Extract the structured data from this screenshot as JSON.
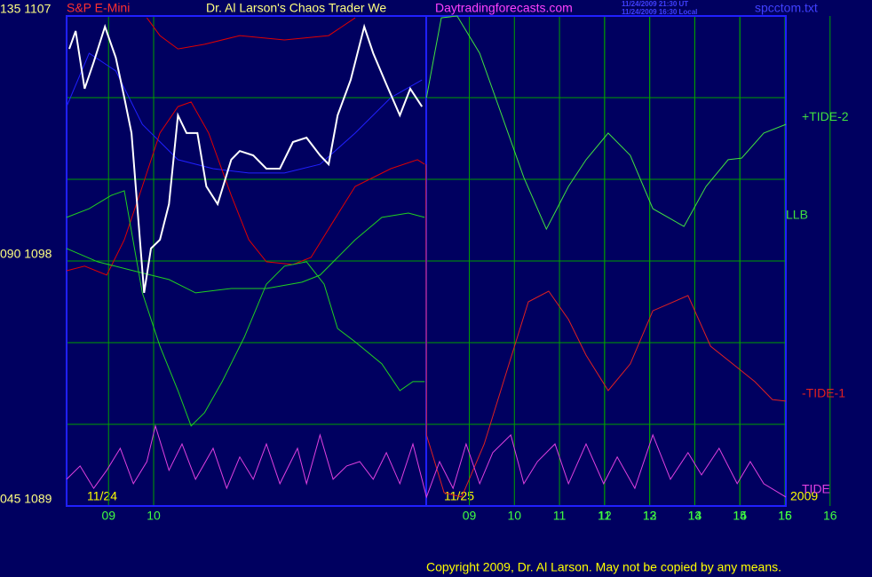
{
  "chart_data": {
    "type": "line",
    "instrument": "S&P E-Mini",
    "title": "Dr. Al Larson's Chaos Trader We",
    "website": "Daytradingforecasts.com",
    "timestamps": [
      "11/24/2009 21:30 UT",
      "11/24/2009 16:30 Local"
    ],
    "filename": "spcctom.txt",
    "copyright": "Copyright 2009, Dr. Al Larson. May not be copied by any means.",
    "date_labels": [
      "11/24",
      "11/25",
      "2009"
    ],
    "annotations": [
      "LLB"
    ],
    "xlim": [
      -0.93,
      15.02
    ],
    "xticks": [
      {
        "value": 0,
        "label": "09"
      },
      {
        "value": 1,
        "label": "10"
      },
      11,
      12,
      13,
      14,
      15,
      16,
      {
        "value": 8,
        "label": "09"
      },
      {
        "value": 9,
        "label": "10"
      },
      {
        "value": 10,
        "label": "11"
      },
      {
        "value": 11,
        "label": "12"
      },
      {
        "value": 12,
        "label": "13"
      },
      {
        "value": 13,
        "label": "14"
      },
      {
        "value": 14,
        "label": "15"
      },
      {
        "value": 15,
        "label": "16"
      }
    ],
    "ylim": [
      1089,
      1107
    ],
    "yticks": [
      {
        "value": 1107,
        "label": "135 1107"
      },
      {
        "value": 1098,
        "label": "090 1098"
      },
      {
        "value": 1089,
        "label": "045 1089"
      }
    ],
    "ygrid": [
      1107,
      1104,
      1101,
      1098,
      1095,
      1092,
      1089
    ],
    "grid": true,
    "series": [
      {
        "color": "#2020ff",
        "x": [
          -0.93,
          -0.43,
          0.16,
          0.75,
          1.54,
          2.32,
          3.11,
          3.9,
          4.69,
          5.47,
          6.26,
          6.95
        ],
        "values": [
          1103.67,
          1105.63,
          1104.98,
          1103.02,
          1101.72,
          1101.39,
          1101.23,
          1101.23,
          1101.55,
          1102.7,
          1104.0,
          1104.65
        ]
      },
      {
        "color": "#e00000",
        "x": [
          0.85,
          1.14,
          1.54,
          2.13,
          2.91,
          3.9,
          4.88,
          5.47
        ],
        "values": [
          1106.93,
          1106.28,
          1105.79,
          1105.96,
          1106.28,
          1106.12,
          1106.28,
          1106.93
        ]
      },
      {
        "color": "#e00000",
        "x": [
          -0.93,
          -0.53,
          -0.04,
          0.35,
          0.75,
          1.14,
          1.54,
          1.83,
          2.22,
          2.72,
          3.11,
          3.5,
          4.09,
          4.49,
          4.98,
          5.47,
          6.26,
          6.85,
          7.01
        ],
        "values": [
          1097.64,
          1097.81,
          1097.48,
          1098.78,
          1100.74,
          1102.7,
          1103.67,
          1103.84,
          1102.7,
          1100.41,
          1098.78,
          1097.97,
          1097.87,
          1098.13,
          1099.44,
          1100.74,
          1101.39,
          1101.72,
          1101.55
        ]
      },
      {
        "color": "#20d020",
        "x": [
          -0.93,
          -0.43,
          0.06,
          0.35,
          0.75,
          1.14,
          1.54,
          1.83,
          2.13,
          2.52,
          3.01,
          3.5,
          3.9,
          4.39,
          4.78,
          5.08,
          5.47,
          6.06,
          6.46,
          6.75,
          7.01
        ],
        "values": [
          1099.6,
          1099.92,
          1100.41,
          1100.58,
          1096.83,
          1094.87,
          1093.24,
          1091.94,
          1092.43,
          1093.57,
          1095.2,
          1097.15,
          1097.81,
          1097.97,
          1097.15,
          1095.52,
          1095.03,
          1094.22,
          1093.24,
          1093.57,
          1093.57
        ]
      },
      {
        "color": "#20d020",
        "x": [
          -0.93,
          -0.24,
          0.55,
          1.34,
          1.93,
          2.72,
          3.5,
          4.29,
          4.69,
          5.08,
          5.47,
          6.06,
          6.65,
          7.01
        ],
        "values": [
          1098.46,
          1097.97,
          1097.64,
          1097.32,
          1096.83,
          1096.99,
          1096.99,
          1097.22,
          1097.48,
          1098.13,
          1098.78,
          1099.6,
          1099.76,
          1099.6
        ]
      },
      {
        "color": "#ffffff",
        "x": [
          -0.87,
          -0.73,
          -0.53,
          -0.33,
          -0.08,
          0.16,
          0.35,
          0.51,
          0.65,
          0.79,
          0.94,
          1.14,
          1.34,
          1.54,
          1.73,
          1.97,
          2.17,
          2.42,
          2.72,
          2.91,
          3.21,
          3.5,
          3.8,
          4.09,
          4.39,
          4.69,
          4.88,
          5.08,
          5.37,
          5.67,
          5.87,
          6.16,
          6.46,
          6.69,
          6.95
        ],
        "values": [
          1105.79,
          1106.45,
          1104.33,
          1105.3,
          1106.61,
          1105.47,
          1104.0,
          1102.7,
          1099.76,
          1096.83,
          1098.46,
          1098.78,
          1100.09,
          1103.35,
          1102.7,
          1102.7,
          1100.74,
          1100.09,
          1101.72,
          1102.04,
          1101.88,
          1101.39,
          1101.39,
          1102.37,
          1102.53,
          1101.88,
          1101.55,
          1103.35,
          1104.65,
          1106.61,
          1105.63,
          1104.49,
          1103.35,
          1104.33,
          1103.67
        ]
      },
      {
        "name": "+TIDE-2",
        "color": "#40e040",
        "x": [
          7.05,
          7.24,
          7.38,
          7.73,
          8.23,
          8.72,
          9.21,
          9.71,
          10.2,
          10.59,
          11.08,
          11.57,
          12.07,
          12.76,
          13.25,
          13.74,
          14.04,
          14.53,
          15.02
        ],
        "values": [
          1104.0,
          1105.7,
          1106.93,
          1107.0,
          1105.63,
          1103.35,
          1101.07,
          1099.17,
          1100.74,
          1101.72,
          1102.7,
          1101.88,
          1099.92,
          1099.27,
          1100.74,
          1101.72,
          1101.78,
          1102.7,
          1103.02
        ]
      },
      {
        "name": "-TIDE-1",
        "color": "#e02020",
        "x": [
          7.04,
          7.05,
          7.44,
          7.83,
          8.33,
          8.82,
          9.31,
          9.76,
          10.2,
          10.59,
          11.08,
          11.57,
          12.07,
          12.85,
          13.35,
          13.84,
          14.33,
          14.72,
          15.02
        ],
        "values": [
          1101.55,
          1091.61,
          1089.49,
          1089.33,
          1091.28,
          1093.89,
          1096.5,
          1096.89,
          1095.85,
          1094.54,
          1093.24,
          1094.22,
          1096.17,
          1096.73,
          1094.87,
          1094.22,
          1093.57,
          1092.91,
          1092.85
        ]
      },
      {
        "name": "TIDE",
        "color": "#e040e0",
        "x": [
          -0.93,
          -0.63,
          -0.33,
          -0.04,
          0.26,
          0.55,
          0.85,
          1.04,
          1.34,
          1.63,
          1.93,
          2.32,
          2.62,
          2.91,
          3.21,
          3.5,
          3.8,
          4.19,
          4.39,
          4.69,
          4.98,
          5.28,
          5.57,
          5.87,
          6.16,
          6.46,
          6.75,
          7.05,
          7.34,
          7.64,
          7.93,
          8.23,
          8.52,
          8.92,
          9.21,
          9.51,
          9.9,
          10.2,
          10.59,
          10.98,
          11.28,
          11.67,
          12.07,
          12.46,
          12.85,
          13.15,
          13.54,
          13.94,
          14.23,
          14.53,
          15.02
        ],
        "values": [
          1089.98,
          1090.47,
          1089.65,
          1090.31,
          1091.12,
          1089.82,
          1090.63,
          1091.94,
          1090.31,
          1091.28,
          1089.98,
          1091.12,
          1089.65,
          1090.8,
          1089.98,
          1091.28,
          1089.82,
          1091.12,
          1089.82,
          1091.61,
          1089.98,
          1090.47,
          1090.63,
          1089.98,
          1090.96,
          1089.82,
          1091.28,
          1089.33,
          1090.63,
          1089.65,
          1091.28,
          1089.82,
          1090.96,
          1091.61,
          1089.82,
          1090.63,
          1091.28,
          1089.82,
          1091.28,
          1089.82,
          1090.8,
          1089.65,
          1091.61,
          1089.98,
          1090.96,
          1090.14,
          1091.12,
          1089.82,
          1090.63,
          1089.82,
          1089.33
        ]
      }
    ]
  }
}
